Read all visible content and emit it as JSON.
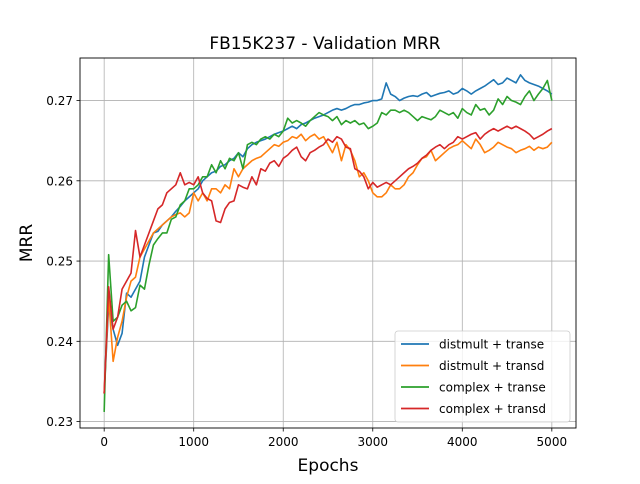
{
  "chart_data": {
    "type": "line",
    "title": "FB15K237 - Validation MRR",
    "xlabel": "Epochs",
    "ylabel": "MRR",
    "xlim": [
      -270,
      5270
    ],
    "ylim": [
      0.2292,
      0.2753
    ],
    "xticks": [
      0,
      1000,
      2000,
      3000,
      4000,
      5000
    ],
    "xtick_labels": [
      "0",
      "1000",
      "2000",
      "3000",
      "4000",
      "5000"
    ],
    "yticks": [
      0.23,
      0.24,
      0.25,
      0.26,
      0.27
    ],
    "ytick_labels": [
      "0.23",
      "0.24",
      "0.25",
      "0.26",
      "0.27"
    ],
    "grid": true,
    "legend_position": "lower-right",
    "x": [
      0,
      50,
      100,
      150,
      200,
      250,
      300,
      350,
      400,
      450,
      500,
      550,
      600,
      650,
      700,
      750,
      800,
      850,
      900,
      950,
      1000,
      1050,
      1100,
      1150,
      1200,
      1250,
      1300,
      1350,
      1400,
      1450,
      1500,
      1550,
      1600,
      1650,
      1700,
      1750,
      1800,
      1850,
      1900,
      1950,
      2000,
      2050,
      2100,
      2150,
      2200,
      2250,
      2300,
      2350,
      2400,
      2450,
      2500,
      2550,
      2600,
      2650,
      2700,
      2750,
      2800,
      2850,
      2900,
      2950,
      3000,
      3050,
      3100,
      3150,
      3200,
      3250,
      3300,
      3350,
      3400,
      3450,
      3500,
      3550,
      3600,
      3650,
      3700,
      3750,
      3800,
      3850,
      3900,
      3950,
      4000,
      4050,
      4100,
      4150,
      4200,
      4250,
      4300,
      4350,
      4400,
      4450,
      4500,
      4550,
      4600,
      4650,
      4700,
      4750,
      4800,
      4850,
      4900,
      4950,
      5000
    ],
    "series": [
      {
        "name": "distmult + transe",
        "color": "#1f77b4",
        "values": [
          0.2335,
          0.2445,
          0.2415,
          0.2395,
          0.241,
          0.246,
          0.2455,
          0.2465,
          0.2475,
          0.2505,
          0.252,
          0.2535,
          0.2537,
          0.2545,
          0.255,
          0.2555,
          0.2562,
          0.2568,
          0.2575,
          0.258,
          0.2585,
          0.259,
          0.26,
          0.2605,
          0.261,
          0.2612,
          0.2618,
          0.262,
          0.2625,
          0.2628,
          0.2635,
          0.263,
          0.264,
          0.2645,
          0.2648,
          0.265,
          0.2652,
          0.2655,
          0.2658,
          0.266,
          0.2662,
          0.2665,
          0.2668,
          0.2665,
          0.267,
          0.2672,
          0.2675,
          0.2678,
          0.268,
          0.2682,
          0.2685,
          0.2688,
          0.269,
          0.2688,
          0.269,
          0.2693,
          0.2695,
          0.2695,
          0.2697,
          0.2698,
          0.27,
          0.27,
          0.2702,
          0.2722,
          0.2708,
          0.2705,
          0.27,
          0.2703,
          0.2705,
          0.2706,
          0.2705,
          0.2708,
          0.271,
          0.2705,
          0.2707,
          0.2709,
          0.271,
          0.2712,
          0.2708,
          0.271,
          0.2715,
          0.2712,
          0.2708,
          0.2712,
          0.2715,
          0.2718,
          0.2722,
          0.2726,
          0.272,
          0.2722,
          0.2728,
          0.2725,
          0.2722,
          0.2732,
          0.2725,
          0.2722,
          0.272,
          0.2718,
          0.2715,
          0.2712,
          0.2708
        ]
      },
      {
        "name": "distmult + transd",
        "color": "#ff7f0e",
        "values": [
          0.2335,
          0.2455,
          0.2375,
          0.2405,
          0.2425,
          0.2455,
          0.2475,
          0.248,
          0.2505,
          0.2515,
          0.2525,
          0.2535,
          0.254,
          0.2545,
          0.255,
          0.2555,
          0.2558,
          0.256,
          0.2555,
          0.256,
          0.2585,
          0.2575,
          0.2585,
          0.2575,
          0.259,
          0.259,
          0.2585,
          0.2595,
          0.259,
          0.2615,
          0.2605,
          0.2615,
          0.262,
          0.2625,
          0.2628,
          0.263,
          0.2635,
          0.264,
          0.2645,
          0.2643,
          0.2648,
          0.265,
          0.2655,
          0.2653,
          0.2658,
          0.265,
          0.2655,
          0.2658,
          0.2652,
          0.2655,
          0.2645,
          0.2635,
          0.2648,
          0.2625,
          0.2645,
          0.2638,
          0.2625,
          0.2605,
          0.261,
          0.26,
          0.2585,
          0.258,
          0.258,
          0.2585,
          0.2595,
          0.259,
          0.259,
          0.2595,
          0.2605,
          0.261,
          0.262,
          0.2628,
          0.263,
          0.2638,
          0.2625,
          0.263,
          0.2635,
          0.264,
          0.2643,
          0.2645,
          0.265,
          0.2645,
          0.264,
          0.2652,
          0.2645,
          0.2635,
          0.2638,
          0.2642,
          0.2648,
          0.2645,
          0.2642,
          0.264,
          0.2635,
          0.2638,
          0.264,
          0.2643,
          0.2638,
          0.2642,
          0.264,
          0.2642,
          0.2648
        ]
      },
      {
        "name": "complex + transe",
        "color": "#2ca02c",
        "values": [
          0.2312,
          0.2508,
          0.2425,
          0.243,
          0.2445,
          0.245,
          0.2438,
          0.2442,
          0.247,
          0.2465,
          0.2495,
          0.252,
          0.2528,
          0.2535,
          0.2535,
          0.2552,
          0.2555,
          0.257,
          0.2575,
          0.259,
          0.259,
          0.2595,
          0.2605,
          0.2605,
          0.262,
          0.261,
          0.2625,
          0.2615,
          0.2628,
          0.2625,
          0.2635,
          0.2615,
          0.2645,
          0.2648,
          0.2645,
          0.2652,
          0.2655,
          0.2652,
          0.2658,
          0.2655,
          0.2662,
          0.2678,
          0.2672,
          0.2675,
          0.2672,
          0.2668,
          0.2675,
          0.268,
          0.2685,
          0.2682,
          0.268,
          0.2675,
          0.268,
          0.267,
          0.2675,
          0.2672,
          0.2675,
          0.267,
          0.2672,
          0.2665,
          0.2668,
          0.2672,
          0.2685,
          0.2682,
          0.2688,
          0.2688,
          0.2685,
          0.2688,
          0.2685,
          0.268,
          0.2675,
          0.268,
          0.2678,
          0.2676,
          0.268,
          0.2688,
          0.2685,
          0.2682,
          0.2685,
          0.2678,
          0.269,
          0.2685,
          0.2682,
          0.2695,
          0.2688,
          0.269,
          0.2682,
          0.2688,
          0.2702,
          0.2695,
          0.2705,
          0.27,
          0.2698,
          0.2695,
          0.2705,
          0.2712,
          0.27,
          0.2708,
          0.2715,
          0.2725,
          0.27
        ]
      },
      {
        "name": "complex + transd",
        "color": "#d62728",
        "values": [
          0.2335,
          0.2468,
          0.2415,
          0.243,
          0.2465,
          0.2475,
          0.2485,
          0.2538,
          0.2505,
          0.252,
          0.2535,
          0.255,
          0.2565,
          0.257,
          0.2585,
          0.259,
          0.2595,
          0.261,
          0.2595,
          0.2598,
          0.2595,
          0.2605,
          0.2585,
          0.2578,
          0.2575,
          0.255,
          0.2548,
          0.2565,
          0.2573,
          0.2575,
          0.2595,
          0.2592,
          0.259,
          0.2605,
          0.2595,
          0.2615,
          0.2612,
          0.2622,
          0.2625,
          0.2618,
          0.2628,
          0.2632,
          0.2638,
          0.2642,
          0.263,
          0.2625,
          0.2635,
          0.2638,
          0.2642,
          0.2645,
          0.2652,
          0.2648,
          0.2655,
          0.2652,
          0.2642,
          0.264,
          0.2615,
          0.2612,
          0.2605,
          0.259,
          0.2598,
          0.2592,
          0.2595,
          0.2598,
          0.2595,
          0.26,
          0.2605,
          0.261,
          0.2615,
          0.2618,
          0.2622,
          0.2628,
          0.2632,
          0.2638,
          0.2642,
          0.2645,
          0.264,
          0.2645,
          0.2648,
          0.2655,
          0.2652,
          0.2655,
          0.2658,
          0.266,
          0.2652,
          0.2658,
          0.2662,
          0.2665,
          0.2662,
          0.2665,
          0.2668,
          0.2665,
          0.2668,
          0.2665,
          0.2662,
          0.2658,
          0.2652,
          0.2655,
          0.2658,
          0.2662,
          0.2665
        ]
      }
    ]
  }
}
